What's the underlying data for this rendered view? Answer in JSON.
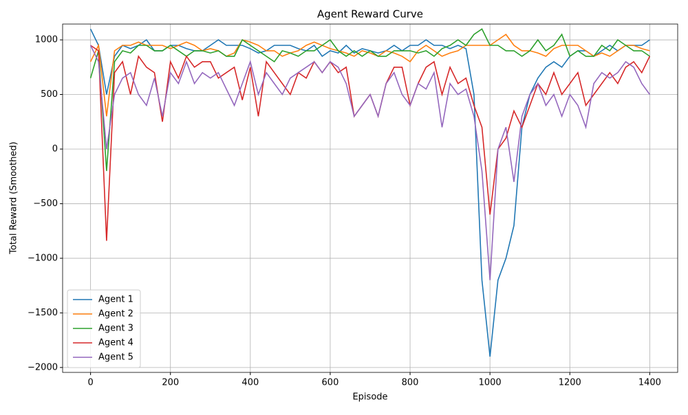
{
  "chart_data": {
    "type": "line",
    "title": "Agent Reward Curve",
    "x_label": "Episode",
    "y_label": "Total Reward (Smoothed)",
    "x": [
      0,
      20,
      40,
      60,
      80,
      100,
      120,
      140,
      160,
      180,
      200,
      220,
      240,
      260,
      280,
      300,
      320,
      340,
      360,
      380,
      400,
      420,
      440,
      460,
      480,
      500,
      520,
      540,
      560,
      580,
      600,
      620,
      640,
      660,
      680,
      700,
      720,
      740,
      760,
      780,
      800,
      820,
      840,
      860,
      880,
      900,
      920,
      940,
      960,
      980,
      1000,
      1020,
      1040,
      1060,
      1080,
      1100,
      1120,
      1140,
      1160,
      1180,
      1200,
      1220,
      1240,
      1260,
      1280,
      1300,
      1320,
      1340,
      1360,
      1380,
      1400
    ],
    "series": [
      {
        "name": "Agent 1",
        "color": "#1f77b4",
        "values": [
          1100,
          950,
          500,
          850,
          950,
          920,
          950,
          1000,
          900,
          900,
          950,
          950,
          920,
          900,
          900,
          950,
          1000,
          950,
          950,
          950,
          920,
          880,
          900,
          950,
          950,
          950,
          920,
          900,
          950,
          850,
          900,
          880,
          950,
          880,
          920,
          900,
          880,
          900,
          950,
          900,
          950,
          950,
          1000,
          950,
          950,
          920,
          950,
          920,
          500,
          -1200,
          -1900,
          -1200,
          -1000,
          -700,
          200,
          500,
          650,
          750,
          800,
          750,
          850,
          900,
          900,
          850,
          900,
          950,
          900,
          950,
          950,
          950,
          1000
        ]
      },
      {
        "name": "Agent 2",
        "color": "#ff7f0e",
        "values": [
          800,
          950,
          300,
          900,
          950,
          950,
          980,
          950,
          950,
          950,
          920,
          950,
          980,
          950,
          900,
          920,
          900,
          850,
          880,
          1000,
          980,
          950,
          900,
          900,
          850,
          880,
          900,
          950,
          980,
          950,
          920,
          900,
          880,
          850,
          900,
          880,
          850,
          900,
          880,
          850,
          800,
          900,
          950,
          900,
          850,
          880,
          900,
          950,
          950,
          950,
          950,
          1000,
          1050,
          950,
          900,
          900,
          880,
          850,
          920,
          950,
          950,
          950,
          900,
          850,
          880,
          850,
          900,
          950,
          950,
          920,
          900
        ]
      },
      {
        "name": "Agent 3",
        "color": "#2ca02c",
        "values": [
          650,
          900,
          -200,
          800,
          900,
          880,
          950,
          950,
          900,
          900,
          950,
          900,
          850,
          900,
          900,
          880,
          900,
          850,
          850,
          1000,
          950,
          900,
          850,
          800,
          900,
          880,
          850,
          900,
          900,
          950,
          1000,
          900,
          850,
          900,
          850,
          900,
          850,
          850,
          900,
          900,
          900,
          880,
          900,
          850,
          920,
          950,
          1000,
          950,
          1050,
          1100,
          950,
          950,
          900,
          900,
          850,
          900,
          1000,
          900,
          950,
          1050,
          850,
          900,
          850,
          850,
          950,
          900,
          1000,
          950,
          900,
          900,
          850
        ]
      },
      {
        "name": "Agent 4",
        "color": "#d62728",
        "values": [
          950,
          900,
          -840,
          700,
          800,
          500,
          850,
          750,
          700,
          250,
          800,
          650,
          850,
          750,
          800,
          800,
          650,
          700,
          750,
          450,
          750,
          300,
          800,
          700,
          600,
          500,
          700,
          650,
          800,
          700,
          800,
          700,
          750,
          300,
          400,
          500,
          300,
          600,
          750,
          750,
          400,
          600,
          750,
          800,
          500,
          750,
          600,
          650,
          400,
          200,
          -600,
          0,
          100,
          350,
          200,
          400,
          600,
          500,
          700,
          500,
          600,
          700,
          400,
          500,
          600,
          700,
          600,
          750,
          800,
          700,
          850
        ]
      },
      {
        "name": "Agent 5",
        "color": "#9467bd",
        "values": [
          950,
          800,
          0,
          500,
          650,
          700,
          500,
          400,
          650,
          300,
          700,
          600,
          800,
          600,
          700,
          650,
          700,
          550,
          400,
          600,
          800,
          500,
          700,
          600,
          500,
          650,
          700,
          750,
          800,
          700,
          800,
          750,
          600,
          300,
          400,
          500,
          300,
          600,
          700,
          500,
          400,
          600,
          550,
          700,
          200,
          600,
          500,
          550,
          300,
          -200,
          -1200,
          0,
          200,
          -300,
          300,
          500,
          600,
          400,
          500,
          300,
          500,
          400,
          200,
          600,
          700,
          650,
          700,
          800,
          750,
          600,
          500
        ]
      }
    ],
    "xlim": [
      -70,
      1470
    ],
    "ylim": [
      -2045,
      1145
    ],
    "xticks": [
      0,
      200,
      400,
      600,
      800,
      1000,
      1200,
      1400
    ],
    "yticks": [
      {
        "value": -2000,
        "label": "−2000"
      },
      {
        "value": -1500,
        "label": "−1500"
      },
      {
        "value": -1000,
        "label": "−1000"
      },
      {
        "value": -500,
        "label": "−500"
      },
      0,
      500,
      1000
    ],
    "grid": true,
    "legend": "lower left"
  }
}
